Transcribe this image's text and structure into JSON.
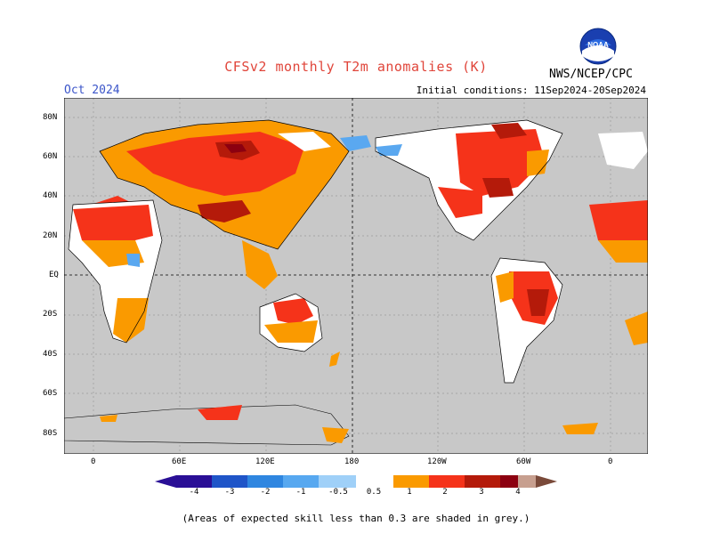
{
  "header": {
    "title": "CFSv2 monthly T2m anomalies (K)",
    "month": "Oct 2024",
    "initial_conditions": "Initial conditions: 11Sep2024-20Sep2024",
    "agency": "NWS/NCEP/CPC",
    "logo_text": "NOAA"
  },
  "axes": {
    "lat_labels": [
      "80N",
      "60N",
      "40N",
      "20N",
      "EQ",
      "20S",
      "40S",
      "60S",
      "80S"
    ],
    "lon_labels": [
      "0",
      "60E",
      "120E",
      "180",
      "120W",
      "60W",
      "0"
    ]
  },
  "colorbar": {
    "labels": [
      "-4",
      "-3",
      "-2",
      "-1",
      "-0.5",
      "0.5",
      "1",
      "2",
      "3",
      "4"
    ],
    "colors": [
      "#2a0f96",
      "#1f55c8",
      "#2f86e0",
      "#57a8f0",
      "#9fd0f8",
      "#ffffff",
      "#fa9a00",
      "#f5331a",
      "#b41a0a",
      "#8c0010",
      "#c79f8f",
      "#7a4a3a"
    ]
  },
  "footnote": "(Areas of expected skill less than 0.3 are shaded in grey.)",
  "map_colors": {
    "background": "#c8c8c8",
    "land_white": "#ffffff",
    "orange": "#fa9a00",
    "red": "#f5331a",
    "darkred": "#b41a0a",
    "maroon": "#8c0010",
    "lightblue": "#5aa8f0"
  }
}
